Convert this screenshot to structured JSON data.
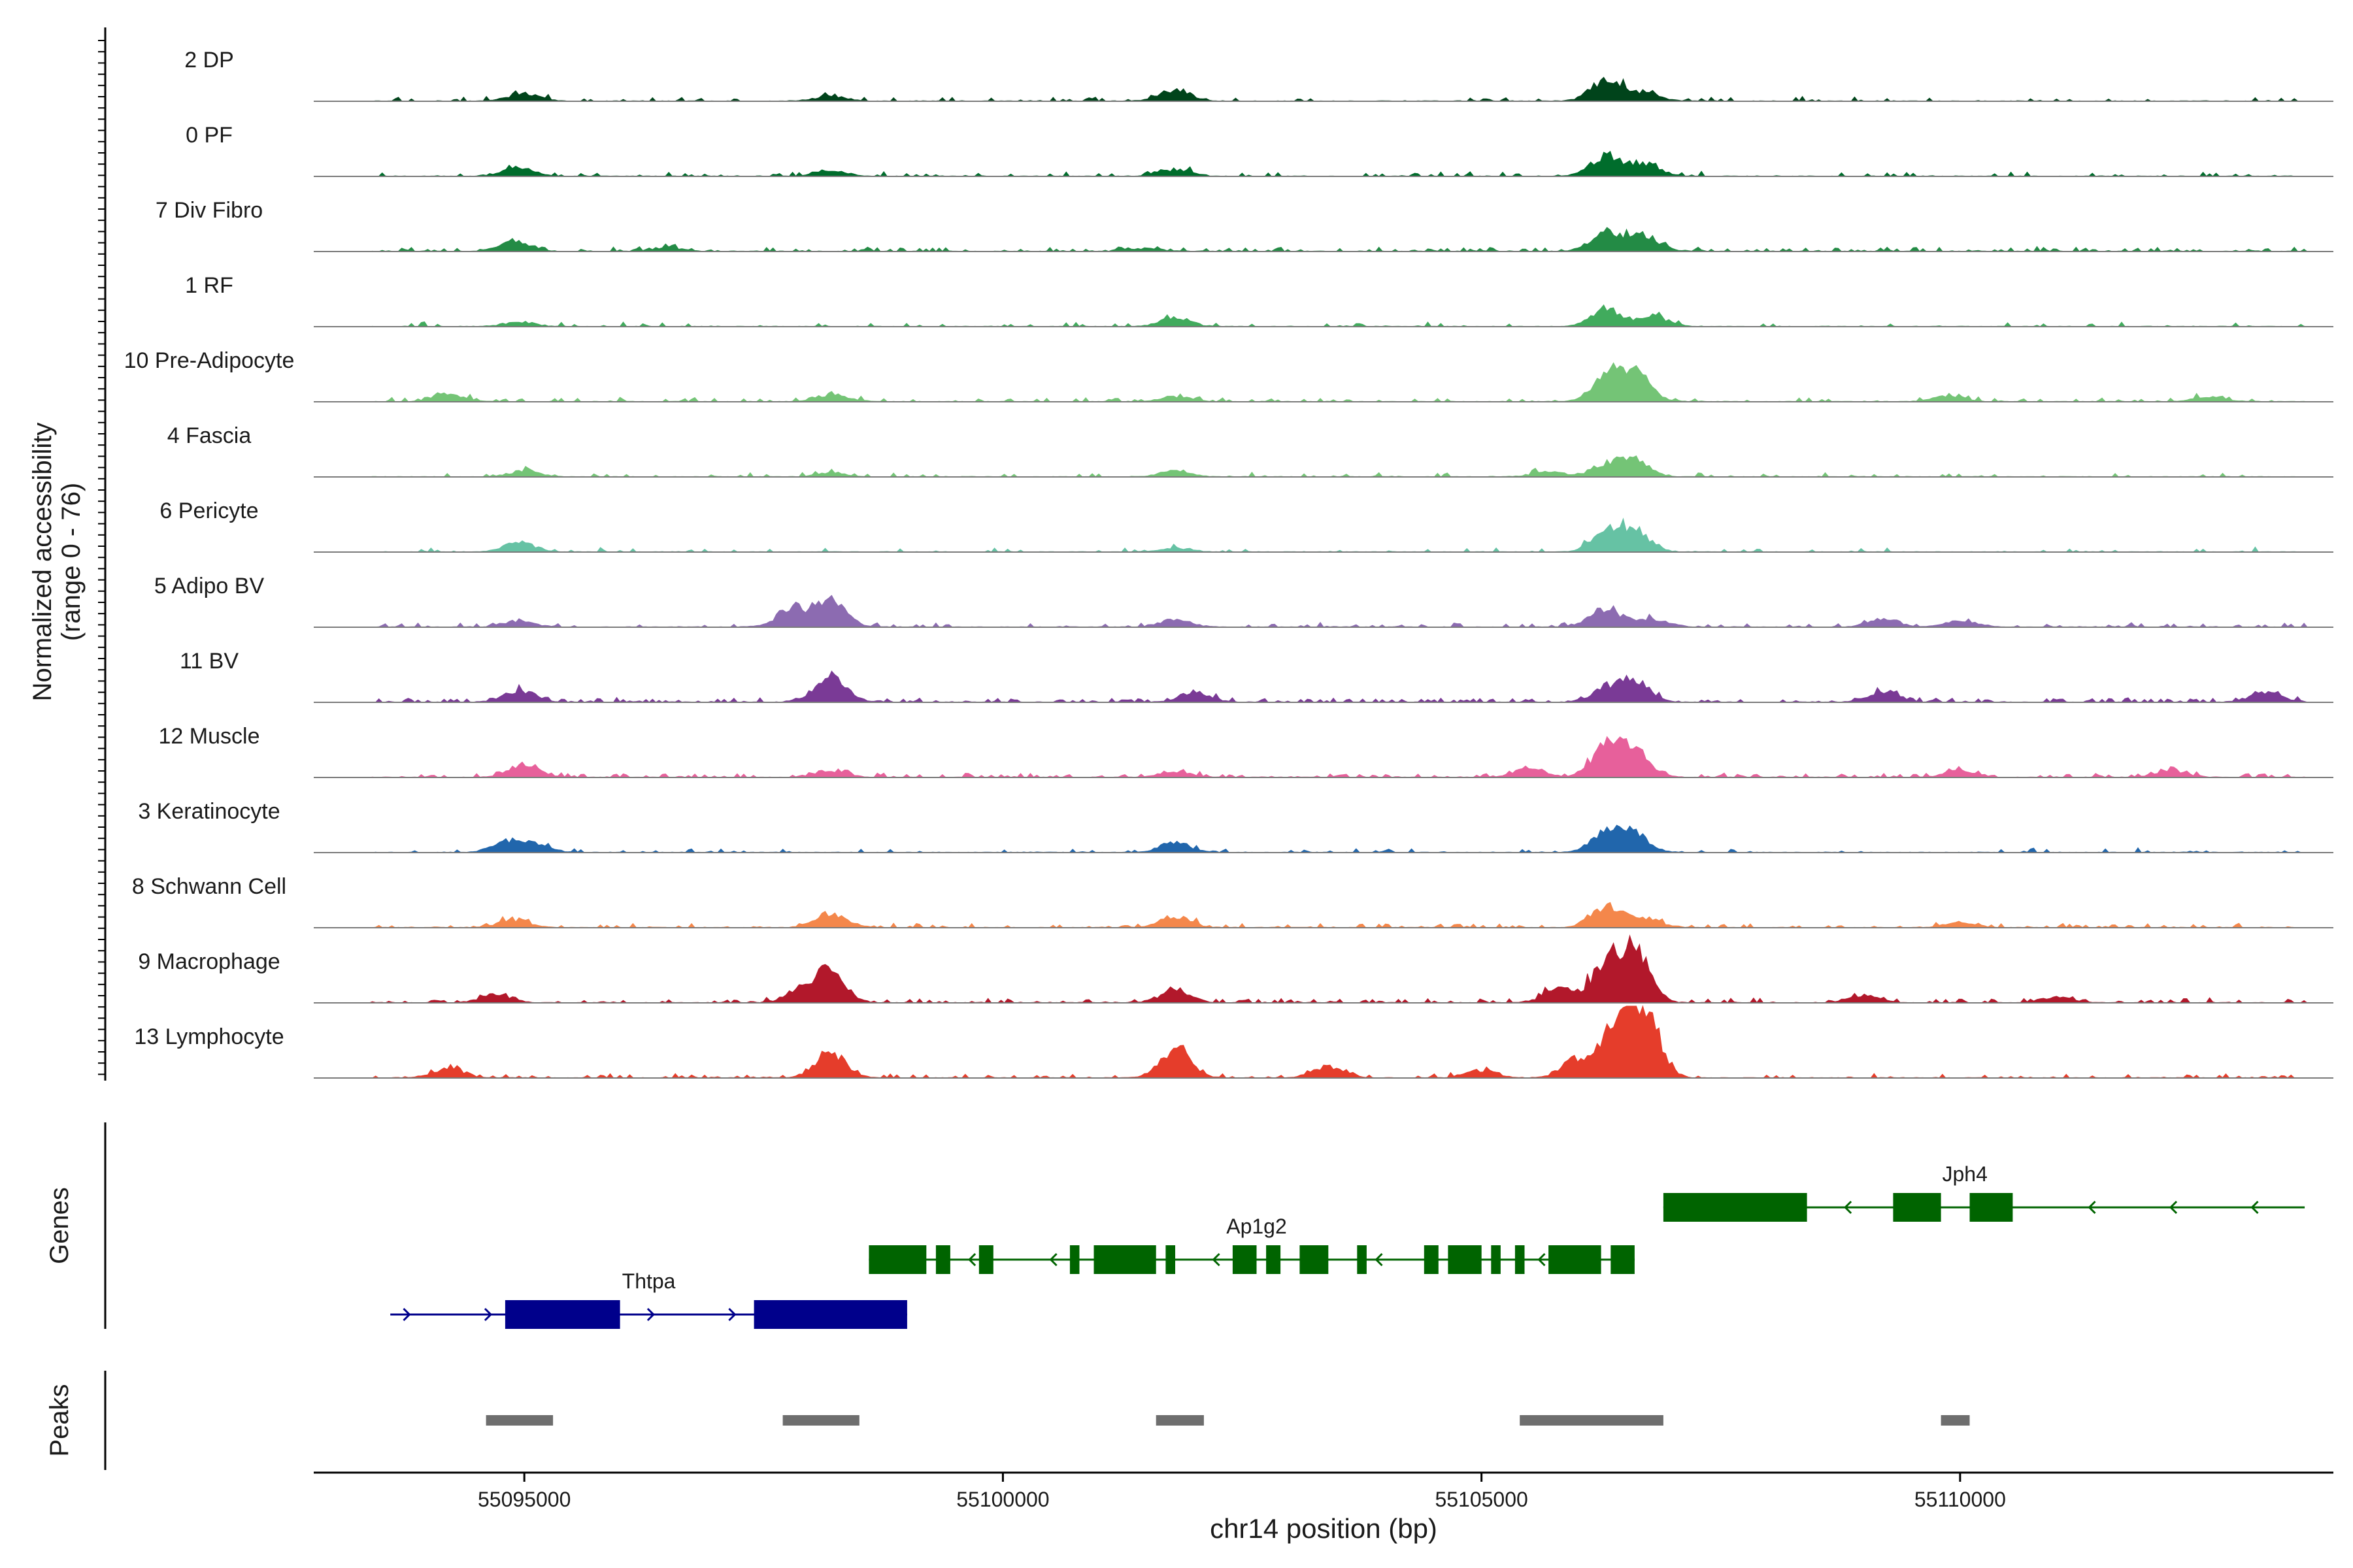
{
  "chart_data": {
    "type": "area",
    "title": "",
    "chromosome": "chr14",
    "xlabel": "chr14 position (bp)",
    "xlim": [
      55092800,
      55113900
    ],
    "xticks": [
      55095000,
      55100000,
      55105000,
      55110000
    ],
    "ylabel_line1": "Normalized accessibility",
    "ylabel_line2": "(range 0 - 76)",
    "ylim": [
      0,
      76
    ],
    "genes_label": "Genes",
    "peaks_label": "Peaks",
    "tracks": [
      {
        "name": "2 DP",
        "color": "#00441b",
        "peaks": [
          [
            55095000,
            8
          ],
          [
            55098200,
            5
          ],
          [
            55101800,
            12
          ],
          [
            55106300,
            22
          ],
          [
            55106700,
            9
          ]
        ],
        "noise": 0.06
      },
      {
        "name": "0 PF",
        "color": "#006d2c",
        "peaks": [
          [
            55094950,
            9
          ],
          [
            55098200,
            6
          ],
          [
            55101800,
            7
          ],
          [
            55106300,
            21
          ],
          [
            55106700,
            13
          ]
        ],
        "noise": 0.06
      },
      {
        "name": "7 Div Fibro",
        "color": "#238b45",
        "peaks": [
          [
            55094900,
            10
          ],
          [
            55096500,
            4
          ],
          [
            55101500,
            3
          ],
          [
            55106300,
            20
          ],
          [
            55106700,
            16
          ]
        ],
        "noise": 0.12
      },
      {
        "name": "1 RF",
        "color": "#41ab5d",
        "peaks": [
          [
            55094950,
            5
          ],
          [
            55101800,
            9
          ],
          [
            55106300,
            19
          ],
          [
            55106800,
            10
          ]
        ],
        "noise": 0.04
      },
      {
        "name": "10 Pre-Adipocyte",
        "color": "#74c476",
        "peaks": [
          [
            55094200,
            8
          ],
          [
            55098200,
            7
          ],
          [
            55101800,
            5
          ],
          [
            55106300,
            22
          ],
          [
            55106600,
            31
          ],
          [
            55109900,
            6
          ],
          [
            55112600,
            5
          ]
        ],
        "noise": 0.08
      },
      {
        "name": "4 Fascia",
        "color": "#74c476",
        "peaks": [
          [
            55095000,
            6
          ],
          [
            55098200,
            4
          ],
          [
            55101800,
            6
          ],
          [
            55105700,
            5
          ],
          [
            55106300,
            12
          ],
          [
            55106600,
            16
          ]
        ],
        "noise": 0.05
      },
      {
        "name": "6 Pericyte",
        "color": "#66c2a4",
        "peaks": [
          [
            55094950,
            10
          ],
          [
            55101800,
            4
          ],
          [
            55106300,
            18
          ],
          [
            55106600,
            22
          ]
        ],
        "noise": 0.04
      },
      {
        "name": "5 Adipo BV",
        "color": "#8c6bb1",
        "peaks": [
          [
            55094950,
            6
          ],
          [
            55097800,
            20
          ],
          [
            55098200,
            27
          ],
          [
            55101800,
            8
          ],
          [
            55106300,
            20
          ],
          [
            55106800,
            8
          ],
          [
            55109200,
            8
          ],
          [
            55110000,
            7
          ]
        ],
        "noise": 0.08
      },
      {
        "name": "11 BV",
        "color": "#7a3a96",
        "peaks": [
          [
            55094950,
            12
          ],
          [
            55098200,
            28
          ],
          [
            55102000,
            10
          ],
          [
            55106300,
            12
          ],
          [
            55106600,
            21
          ],
          [
            55109200,
            11
          ],
          [
            55113200,
            10
          ]
        ],
        "noise": 0.14
      },
      {
        "name": "12 Muscle",
        "color": "#e7609b",
        "peaks": [
          [
            55095000,
            14
          ],
          [
            55098200,
            7
          ],
          [
            55101800,
            6
          ],
          [
            55105500,
            9
          ],
          [
            55106300,
            31
          ],
          [
            55106600,
            25
          ],
          [
            55110000,
            7
          ],
          [
            55112200,
            7
          ]
        ],
        "noise": 0.12
      },
      {
        "name": "3 Keratinocyte",
        "color": "#2166ac",
        "peaks": [
          [
            55094800,
            10
          ],
          [
            55095100,
            8
          ],
          [
            55101800,
            10
          ],
          [
            55106300,
            22
          ],
          [
            55106600,
            18
          ]
        ],
        "noise": 0.05
      },
      {
        "name": "8 Schwann Cell",
        "color": "#f4874b",
        "peaks": [
          [
            55094900,
            8
          ],
          [
            55098200,
            15
          ],
          [
            55101800,
            12
          ],
          [
            55106300,
            22
          ],
          [
            55106700,
            10
          ],
          [
            55110000,
            6
          ]
        ],
        "noise": 0.1
      },
      {
        "name": "9 Macrophage",
        "color": "#b2182b",
        "peaks": [
          [
            55094700,
            8
          ],
          [
            55097900,
            14
          ],
          [
            55098200,
            30
          ],
          [
            55101800,
            13
          ],
          [
            55105800,
            14
          ],
          [
            55106300,
            40
          ],
          [
            55106600,
            50
          ],
          [
            55109000,
            7
          ],
          [
            55111000,
            6
          ]
        ],
        "noise": 0.1
      },
      {
        "name": "13 Lymphocyte",
        "color": "#e53d2b",
        "peaks": [
          [
            55094200,
            9
          ],
          [
            55098200,
            27
          ],
          [
            55101800,
            30
          ],
          [
            55103400,
            12
          ],
          [
            55105000,
            8
          ],
          [
            55106000,
            20
          ],
          [
            55106400,
            48
          ],
          [
            55106700,
            68
          ]
        ],
        "noise": 0.08
      }
    ],
    "genes": [
      {
        "name": "Thtpa",
        "color": "#00008b",
        "strand": "+",
        "start": 55093600,
        "end": 55099000,
        "exons": [
          [
            55094800,
            55096000
          ],
          [
            55097400,
            55099000
          ]
        ]
      },
      {
        "name": "Ap1g2",
        "color": "#006400",
        "strand": "-",
        "start": 55098600,
        "end": 55106600,
        "exons": [
          [
            55098600,
            55099200
          ],
          [
            55099300,
            55099450
          ],
          [
            55099750,
            55099900
          ],
          [
            55100700,
            55100800
          ],
          [
            55100950,
            55101100
          ],
          [
            55101100,
            55101600
          ],
          [
            55101700,
            55101800
          ],
          [
            55102400,
            55102650
          ],
          [
            55102750,
            55102900
          ],
          [
            55103100,
            55103400
          ],
          [
            55103700,
            55103800
          ],
          [
            55104400,
            55104550
          ],
          [
            55104650,
            55105000
          ],
          [
            55105100,
            55105200
          ],
          [
            55105350,
            55105450
          ],
          [
            55105700,
            55106250
          ],
          [
            55106350,
            55106600
          ]
        ]
      },
      {
        "name": "Jph4",
        "color": "#006400",
        "strand": "-",
        "start": 55106900,
        "end": 55113600,
        "exons": [
          [
            55106900,
            55108400
          ],
          [
            55109300,
            55109800
          ],
          [
            55110100,
            55110550
          ]
        ]
      }
    ],
    "peaks": [
      [
        55094600,
        55095300
      ],
      [
        55097700,
        55098500
      ],
      [
        55101600,
        55102100
      ],
      [
        55105400,
        55106900
      ],
      [
        55109800,
        55110100
      ]
    ]
  }
}
